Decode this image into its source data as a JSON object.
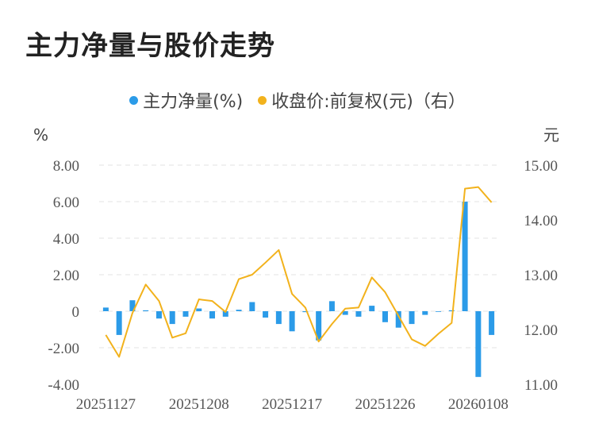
{
  "chart_data": {
    "type": "bar+line",
    "title": "主力净量与股价走势",
    "legend": [
      {
        "label": "主力净量(%)",
        "color": "#2b9be8"
      },
      {
        "label": "收盘价:前复权(元)（右）",
        "color": "#f2b21c"
      }
    ],
    "left_axis": {
      "unit": "%",
      "ticks": [
        "8.00",
        "6.00",
        "4.00",
        "2.00",
        "0",
        "-2.00",
        "-4.00"
      ],
      "range": [
        -4,
        8
      ]
    },
    "right_axis": {
      "unit": "元",
      "ticks": [
        "15.00",
        "14.00",
        "13.00",
        "12.00",
        "11.00"
      ],
      "range": [
        11,
        15
      ]
    },
    "x_tick_labels": [
      "20251127",
      "20251208",
      "20251217",
      "20251226",
      "20260108"
    ],
    "x_tick_indices": [
      0,
      7,
      14,
      21,
      28
    ],
    "grid": true,
    "series": [
      {
        "name": "主力净量(%)",
        "kind": "bar",
        "values": [
          0.2,
          -1.3,
          0.6,
          0.05,
          -0.4,
          -0.7,
          -0.3,
          0.15,
          -0.4,
          -0.3,
          0.08,
          0.5,
          -0.35,
          -0.7,
          -1.1,
          -0.05,
          -1.6,
          0.55,
          -0.2,
          -0.3,
          0.3,
          -0.6,
          -0.9,
          -0.7,
          -0.2,
          0.0,
          0.05,
          6.0,
          -3.6,
          -1.3
        ]
      },
      {
        "name": "收盘价:前复权(元)（右）",
        "kind": "line",
        "values": [
          11.9,
          11.5,
          12.3,
          12.82,
          12.52,
          11.85,
          11.93,
          12.55,
          12.52,
          12.32,
          12.92,
          13.0,
          13.22,
          13.45,
          12.65,
          12.4,
          11.78,
          12.1,
          12.38,
          12.4,
          12.95,
          12.68,
          12.25,
          11.82,
          11.7,
          11.92,
          12.12,
          14.57,
          14.6,
          14.32
        ]
      }
    ]
  }
}
